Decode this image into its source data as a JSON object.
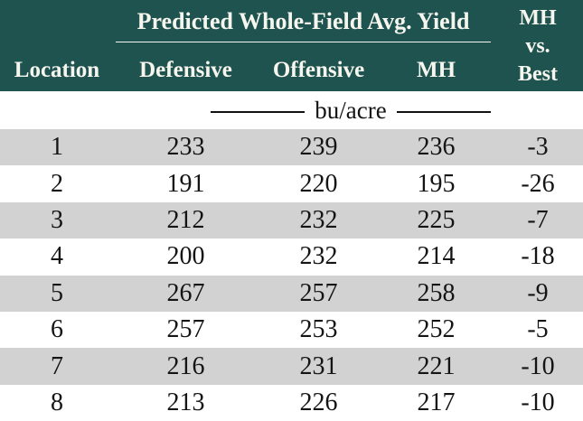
{
  "table": {
    "header": {
      "location_label": "Location",
      "group_title": "Predicted Whole-Field Avg. Yield",
      "columns": [
        "Defensive",
        "Offensive",
        "MH"
      ],
      "best_lines": [
        "MH",
        "vs.",
        "Best"
      ]
    },
    "units_label": "bu/acre",
    "rows": [
      {
        "location": "1",
        "defensive": "233",
        "offensive": "239",
        "mh": "236",
        "diff": "-3"
      },
      {
        "location": "2",
        "defensive": "191",
        "offensive": "220",
        "mh": "195",
        "diff": "-26"
      },
      {
        "location": "3",
        "defensive": "212",
        "offensive": "232",
        "mh": "225",
        "diff": "-7"
      },
      {
        "location": "4",
        "defensive": "200",
        "offensive": "232",
        "mh": "214",
        "diff": "-18"
      },
      {
        "location": "5",
        "defensive": "267",
        "offensive": "257",
        "mh": "258",
        "diff": "-9"
      },
      {
        "location": "6",
        "defensive": "257",
        "offensive": "253",
        "mh": "252",
        "diff": "-5"
      },
      {
        "location": "7",
        "defensive": "216",
        "offensive": "231",
        "mh": "221",
        "diff": "-10"
      },
      {
        "location": "8",
        "defensive": "213",
        "offensive": "226",
        "mh": "217",
        "diff": "-10"
      }
    ]
  },
  "colors": {
    "header_bg": "#1e5350",
    "header_text": "#f6f6ee",
    "row_alt_bg": "#d2d2d2",
    "row_bg": "#ffffff",
    "data_text": "#141414"
  },
  "chart_data": {
    "type": "table",
    "title": "Predicted Whole-Field Avg. Yield",
    "units": "bu/acre",
    "columns": [
      "Location",
      "Defensive",
      "Offensive",
      "MH",
      "MH vs. Best"
    ],
    "rows": [
      [
        1,
        233,
        239,
        236,
        -3
      ],
      [
        2,
        191,
        220,
        195,
        -26
      ],
      [
        3,
        212,
        232,
        225,
        -7
      ],
      [
        4,
        200,
        232,
        214,
        -18
      ],
      [
        5,
        267,
        257,
        258,
        -9
      ],
      [
        6,
        257,
        253,
        252,
        -5
      ],
      [
        7,
        216,
        231,
        221,
        -10
      ],
      [
        8,
        213,
        226,
        217,
        -10
      ]
    ]
  }
}
